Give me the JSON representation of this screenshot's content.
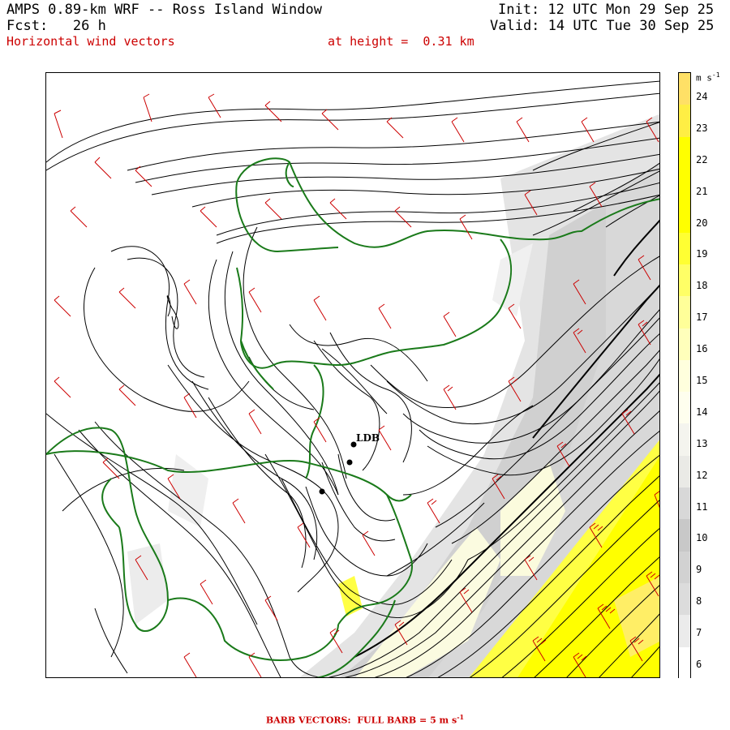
{
  "header": {
    "title_line1": "AMPS 0.89-km WRF -- Ross Island Window",
    "title_line2": "Fcst:   26 h",
    "title_line3": "Horizontal wind vectors",
    "height_label": "at height =  0.31 km",
    "init": "Init: 12 UTC Mon 29 Sep 25",
    "valid": "Valid: 14 UTC Tue 30 Sep 25"
  },
  "colorbar": {
    "unit": "m s",
    "unit_exp": "-1",
    "labels": [
      "24",
      "23",
      "22",
      "21",
      "20",
      "19",
      "18",
      "17",
      "16",
      "15",
      "14",
      "13",
      "12",
      "11",
      "10",
      "9",
      "8",
      "7",
      "6"
    ],
    "colors": [
      "#ffe066",
      "#ffee44",
      "#ffff00",
      "#ffff00",
      "#ffff00",
      "#ffff33",
      "#ffff66",
      "#ffff99",
      "#ffffbb",
      "#ffffdd",
      "#fefeee",
      "#f4f4ee",
      "#eaeae6",
      "#d8d8d8",
      "#c8c8c8",
      "#d2d2d2",
      "#dcdcdc",
      "#ebebeb",
      "#ffffff"
    ]
  },
  "map": {
    "station_label": "LDB",
    "colors": {
      "coast": "#1a7a1a",
      "contour": "#000000",
      "barb": "#cc0000"
    }
  },
  "footer": "BARB VECTORS:  FULL BARB = 5 m s",
  "footer_exp": "-1"
}
